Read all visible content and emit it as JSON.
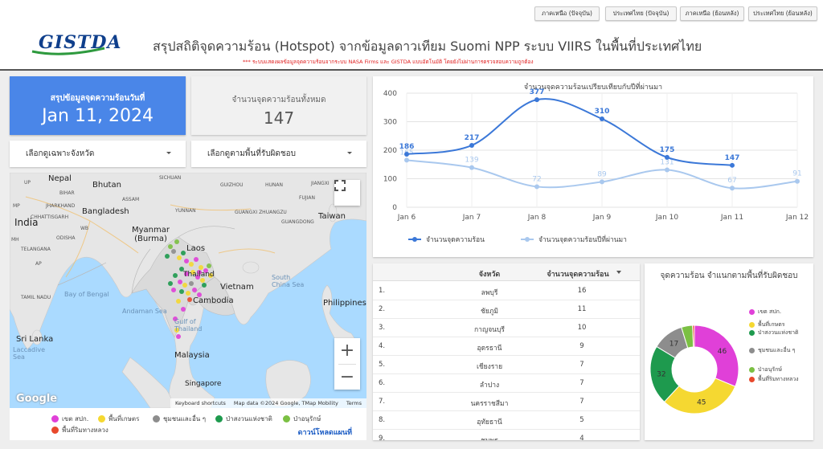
{
  "nav": {
    "buttons": [
      "ภาคเหนือ (ปัจจุบัน)",
      "ประเทศไทย (ปัจจุบัน)",
      "ภาคเหนือ (ย้อนหลัง)",
      "ประเทศไทย (ย้อนหลัง)"
    ]
  },
  "header": {
    "logo_text": "GISTDA",
    "title": "สรุปสถิติจุดความร้อน (Hotspot) จากข้อมูลดาวเทียม Suomi NPP ระบบ VIIRS  ในพื้นที่ประเทศไทย",
    "subtitle": "*** ระบบแสดงผลข้อมูลจุดความร้อนจากระบบ NASA Firms และ GISTDA แบบอัตโนมัติ โดยยังไม่ผ่านการตรวจสอบความถูกต้อง"
  },
  "summary": {
    "date_label": "สรุปข้อมูลจุดความร้อนวันที่",
    "date_value": "Jan 11, 2024",
    "total_label": "จำนวนจุดความร้อนทั้งหมด",
    "total_value": "147"
  },
  "filters": {
    "province": "เลือกดูเฉพาะจังหวัด",
    "area": "เลือกดูตามพื้นที่รับผิดชอบ"
  },
  "map": {
    "labels": {
      "nepal": "Nepal",
      "bhutan": "Bhutan",
      "india": "India",
      "bangladesh": "Bangladesh",
      "myanmar": "Myanmar\n(Burma)",
      "laos": "Laos",
      "thailand": "Thailand",
      "vietnam": "Vietnam",
      "cambodia": "Cambodia",
      "taiwan": "Taiwan",
      "philippines": "Philippines",
      "malaysia": "Malaysia",
      "singapore": "Singapore",
      "srilanka": "Sri Lanka",
      "bay": "Bay of Bengal",
      "andaman": "Andaman Sea",
      "gulf": "Gulf of\nThailand",
      "scs": "South\nChina Sea",
      "laccadive": "Laccadive\nSea",
      "sichuan": "SICHUAN",
      "guizhou": "GUIZHOU",
      "hunan": "HUNAN",
      "jiangxi": "JIANGXI",
      "fujian": "FUJIAN",
      "guangxi": "GUANGXI ZHUANGZU",
      "guangdong": "GUANGDONG",
      "yunnan": "YUNNAN",
      "up": "UP",
      "bihar": "BIHAR",
      "assam": "ASSAM",
      "mp": "MP",
      "jharkhand": "JHARKHAND",
      "wb": "WB",
      "chhattisgarh": "CHHATTISGARH",
      "odisha": "ODISHA",
      "telangana": "TELANGANA",
      "mh": "MH",
      "ap": "AP",
      "tamil": "TAMIL NADU"
    },
    "google": "Google",
    "footer": {
      "shortcuts": "Keyboard shortcuts",
      "data": "Map data ©2024 Google, TMap Mobility",
      "terms": "Terms"
    },
    "legend": [
      {
        "label": "เขต สปก.",
        "color": "#e040d8"
      },
      {
        "label": "พื้นที่เกษตร",
        "color": "#f5d831"
      },
      {
        "label": "ชุมชนและอื่น ๆ",
        "color": "#8d8d8d"
      },
      {
        "label": "ป่าสงวนแห่งชาติ",
        "color": "#1e9a4e"
      },
      {
        "label": "ป่าอนุรักษ์",
        "color": "#7bc043"
      },
      {
        "label": "พื้นที่ริมทางหลวง",
        "color": "#e8492c"
      }
    ],
    "download": "ดาวน์โหลดแผนที่"
  },
  "line_chart": {
    "title": "จำนวนจุดความร้อนเปรียบเทียบกับปีที่ผ่านมา"
  },
  "chart_data": [
    {
      "type": "line",
      "title": "จำนวนจุดความร้อนเปรียบเทียบกับปีที่ผ่านมา",
      "categories": [
        "Jan 6",
        "Jan 7",
        "Jan 8",
        "Jan 9",
        "Jan 10",
        "Jan 11",
        "Jan 12"
      ],
      "ylim": [
        0,
        400
      ],
      "yticks": [
        0,
        100,
        200,
        300,
        400
      ],
      "grid": true,
      "legend_position": "bottom-left",
      "series": [
        {
          "name": "จำนวนจุดความร้อน",
          "color": "#3b78d8",
          "values": [
            186,
            217,
            377,
            310,
            175,
            147,
            null
          ]
        },
        {
          "name": "จำนวนจุดความร้อนปีที่ผ่านมา",
          "color": "#a9c8ee",
          "values": [
            165,
            139,
            72,
            89,
            131,
            67,
            91
          ]
        }
      ]
    },
    {
      "type": "pie",
      "title": "จุดความร้อน จำแนกตามพื้นที่รับผิดชอบ",
      "slices": [
        {
          "label": "เขต สปก.",
          "value": 46,
          "color": "#e040d8"
        },
        {
          "label": "พื้นที่เกษตร",
          "value": 45,
          "color": "#f5d831"
        },
        {
          "label": "ป่าสงวนแห่งชาติ",
          "value": 32,
          "color": "#1e9a4e"
        },
        {
          "label": "ชุมชนและอื่น ๆ",
          "value": 17,
          "color": "#8d8d8d"
        },
        {
          "label": "ป่าอนุรักษ์",
          "value": 6,
          "color": "#7bc043"
        },
        {
          "label": "พื้นที่ริมทางหลวง",
          "value": 1,
          "color": "#e8492c"
        }
      ],
      "legend_position": "right"
    }
  ],
  "table": {
    "headers": {
      "province": "จังหวัด",
      "count": "จำนวนจุดความร้อน"
    },
    "rows": [
      {
        "idx": "1.",
        "province": "ลพบุรี",
        "count": "16"
      },
      {
        "idx": "2.",
        "province": "ชัยภูมิ",
        "count": "11"
      },
      {
        "idx": "3.",
        "province": "กาญจนบุรี",
        "count": "10"
      },
      {
        "idx": "4.",
        "province": "อุดรธานี",
        "count": "9"
      },
      {
        "idx": "5.",
        "province": "เชียงราย",
        "count": "7"
      },
      {
        "idx": "6.",
        "province": "ลำปาง",
        "count": "7"
      },
      {
        "idx": "7.",
        "province": "นครราชสีมา",
        "count": "7"
      },
      {
        "idx": "8.",
        "province": "อุทัยธานี",
        "count": "5"
      },
      {
        "idx": "9.",
        "province": "ชุมพร",
        "count": "4"
      }
    ]
  },
  "donut": {
    "title": "จุดความร้อน จำแนกตามพื้นที่รับผิดชอบ",
    "legend": [
      {
        "label": "เขต สปก.",
        "color": "#e040d8"
      },
      {
        "label": "พื้นที่เกษตร",
        "color": "#f5d831"
      },
      {
        "label": "ป่าสงวนแห่งชาติ",
        "color": "#1e9a4e"
      },
      {
        "label": "ชุมชนและอื่น ๆ",
        "color": "#8d8d8d"
      },
      {
        "label": "ป่าอนุรักษ์",
        "color": "#7bc043"
      },
      {
        "label": "พื้นที่ริมทางหลวง",
        "color": "#e8492c"
      }
    ]
  }
}
